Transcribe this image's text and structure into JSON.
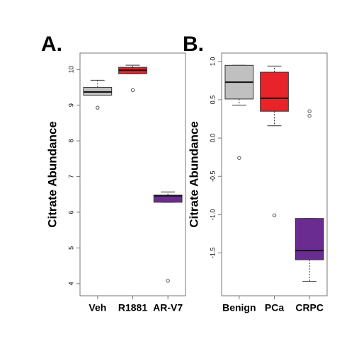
{
  "chart_data": [
    {
      "type": "box",
      "panel_label": "A.",
      "ylabel": "Citrate Abundance",
      "categories": [
        "Veh",
        "R1881",
        "AR-V7"
      ],
      "boxes": [
        {
          "color": "#c0c0c0",
          "min": 9.28,
          "q1": 9.28,
          "median": 9.37,
          "q3": 9.5,
          "max": 9.7,
          "outliers": [
            8.93
          ]
        },
        {
          "color": "#e8232a",
          "min": 9.88,
          "q1": 9.88,
          "median": 9.98,
          "q3": 10.06,
          "max": 10.12,
          "outliers": [
            9.42
          ]
        },
        {
          "color": "#6a2c91",
          "min": 6.28,
          "q1": 6.28,
          "median": 6.46,
          "q3": 6.48,
          "max": 6.57,
          "outliers": [
            4.08
          ]
        }
      ],
      "ylim": [
        3.66,
        10.46
      ],
      "yticks": [
        4,
        5,
        6,
        7,
        8,
        9,
        10
      ]
    },
    {
      "type": "box",
      "panel_label": "B.",
      "ylabel": "Citrate Abundance",
      "categories": [
        "Benign",
        "PCa",
        "CRPC"
      ],
      "boxes": [
        {
          "color": "#c0c0c0",
          "min": 0.43,
          "q1": 0.51,
          "median": 0.73,
          "q3": 0.95,
          "max": 0.95,
          "outliers": [
            -0.26
          ]
        },
        {
          "color": "#e8232a",
          "min": 0.16,
          "q1": 0.35,
          "median": 0.52,
          "q3": 0.86,
          "max": 0.94,
          "outliers": [
            -1.01
          ]
        },
        {
          "color": "#6a2c91",
          "min": -1.87,
          "q1": -1.59,
          "median": -1.47,
          "q3": -1.05,
          "max": -1.05,
          "outliers": [
            0.35,
            0.29
          ]
        }
      ],
      "ylim": [
        -2.06,
        1.11
      ],
      "yticks": [
        {
          "value": 1,
          "label": "1.0"
        },
        0.5,
        {
          "value": 0,
          "label": "0.0"
        },
        -0.5,
        {
          "value": -1,
          "label": "-1.0"
        },
        -1.5
      ]
    }
  ]
}
